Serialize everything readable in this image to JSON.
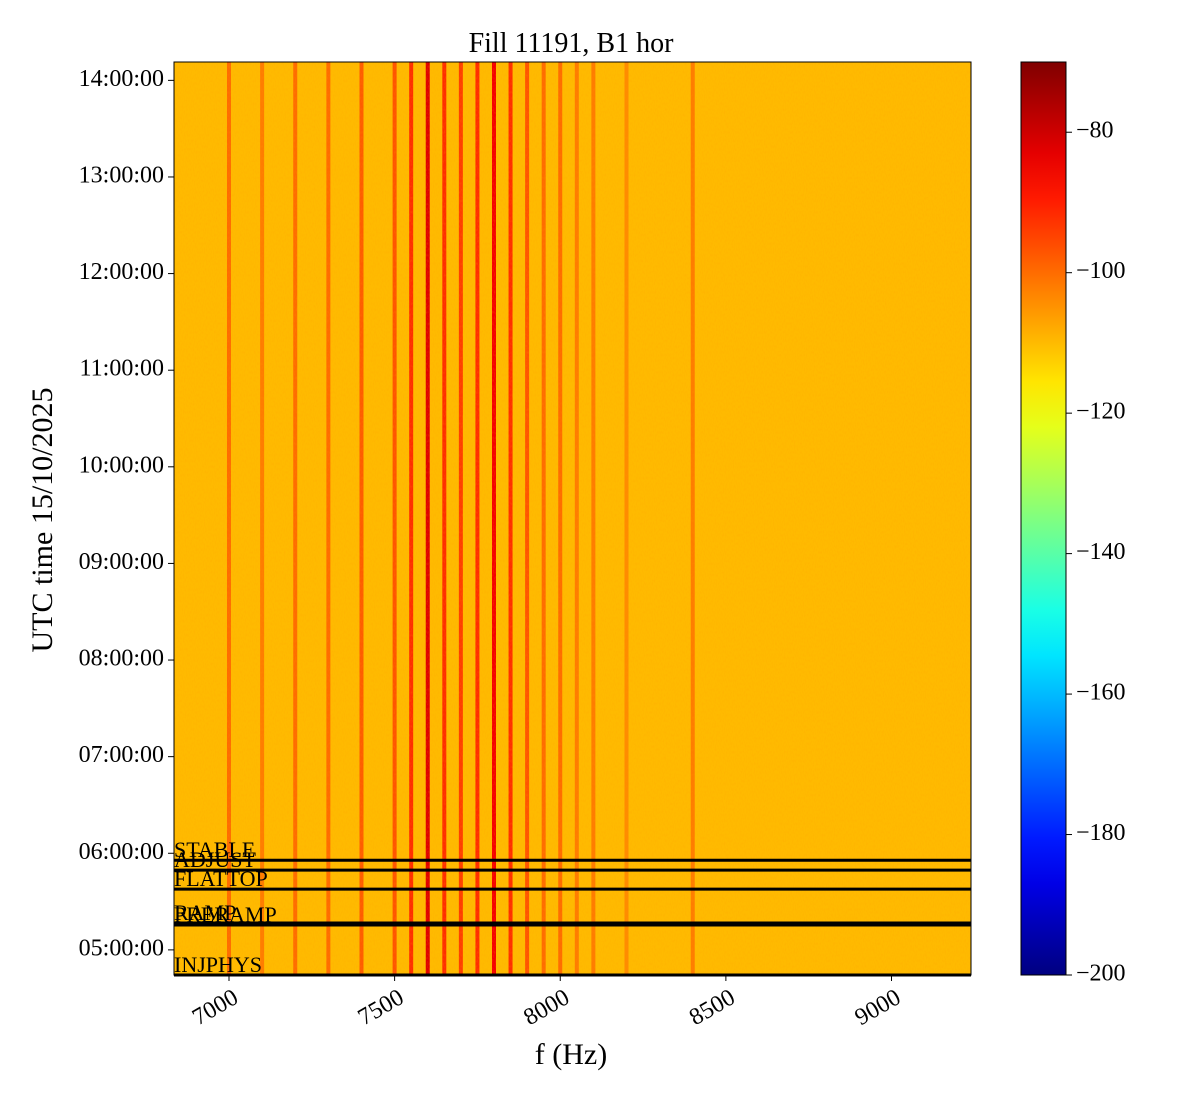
{
  "chart_data": {
    "type": "spectrogram",
    "title": "Fill 11191, B1 hor",
    "x_label": "f (Hz)",
    "y_label": "UTC time 15/10/2025",
    "xlim": [
      6834,
      9240
    ],
    "xticks": [
      7000,
      7500,
      8000,
      8500,
      9000
    ],
    "ylim": [
      4.74,
      14.19
    ],
    "yticks": [
      {
        "value": 5,
        "label": "05:00:00"
      },
      {
        "value": 6,
        "label": "06:00:00"
      },
      {
        "value": 7,
        "label": "07:00:00"
      },
      {
        "value": 8,
        "label": "08:00:00"
      },
      {
        "value": 9,
        "label": "09:00:00"
      },
      {
        "value": 10,
        "label": "10:00:00"
      },
      {
        "value": 11,
        "label": "11:00:00"
      },
      {
        "value": 12,
        "label": "12:00:00"
      },
      {
        "value": 13,
        "label": "13:00:00"
      },
      {
        "value": 14,
        "label": "14:00:00"
      }
    ],
    "colormap": "jet",
    "clim": [
      -200,
      -70
    ],
    "cticks": [
      {
        "value": -200,
        "label": "−200"
      },
      {
        "value": -180,
        "label": "−180"
      },
      {
        "value": -160,
        "label": "−160"
      },
      {
        "value": -140,
        "label": "−140"
      },
      {
        "value": -120,
        "label": "−120"
      },
      {
        "value": -100,
        "label": "−100"
      },
      {
        "value": -80,
        "label": "−80"
      }
    ],
    "background_level": -110,
    "stripes": [
      {
        "f": 7000,
        "level": -100
      },
      {
        "f": 7100,
        "level": -102
      },
      {
        "f": 7200,
        "level": -100
      },
      {
        "f": 7300,
        "level": -100
      },
      {
        "f": 7400,
        "level": -98
      },
      {
        "f": 7500,
        "level": -97
      },
      {
        "f": 7550,
        "level": -92
      },
      {
        "f": 7600,
        "level": -82
      },
      {
        "f": 7650,
        "level": -92
      },
      {
        "f": 7700,
        "level": -94
      },
      {
        "f": 7750,
        "level": -92
      },
      {
        "f": 7800,
        "level": -85
      },
      {
        "f": 7850,
        "level": -92
      },
      {
        "f": 7900,
        "level": -97
      },
      {
        "f": 7950,
        "level": -100
      },
      {
        "f": 8000,
        "level": -100
      },
      {
        "f": 8050,
        "level": -102
      },
      {
        "f": 8100,
        "level": -102
      },
      {
        "f": 8200,
        "level": -104
      },
      {
        "f": 8400,
        "level": -102
      }
    ],
    "annotations": [
      {
        "label": "STABLE",
        "time": 5.928
      },
      {
        "label": "ADJUST",
        "time": 5.825
      },
      {
        "label": "FLATTOP",
        "time": 5.629
      },
      {
        "label": "RAMP",
        "time": 5.278
      },
      {
        "label": "PRERAMP",
        "time": 5.258
      },
      {
        "label": "INJPHYS",
        "time": 4.74
      }
    ]
  }
}
